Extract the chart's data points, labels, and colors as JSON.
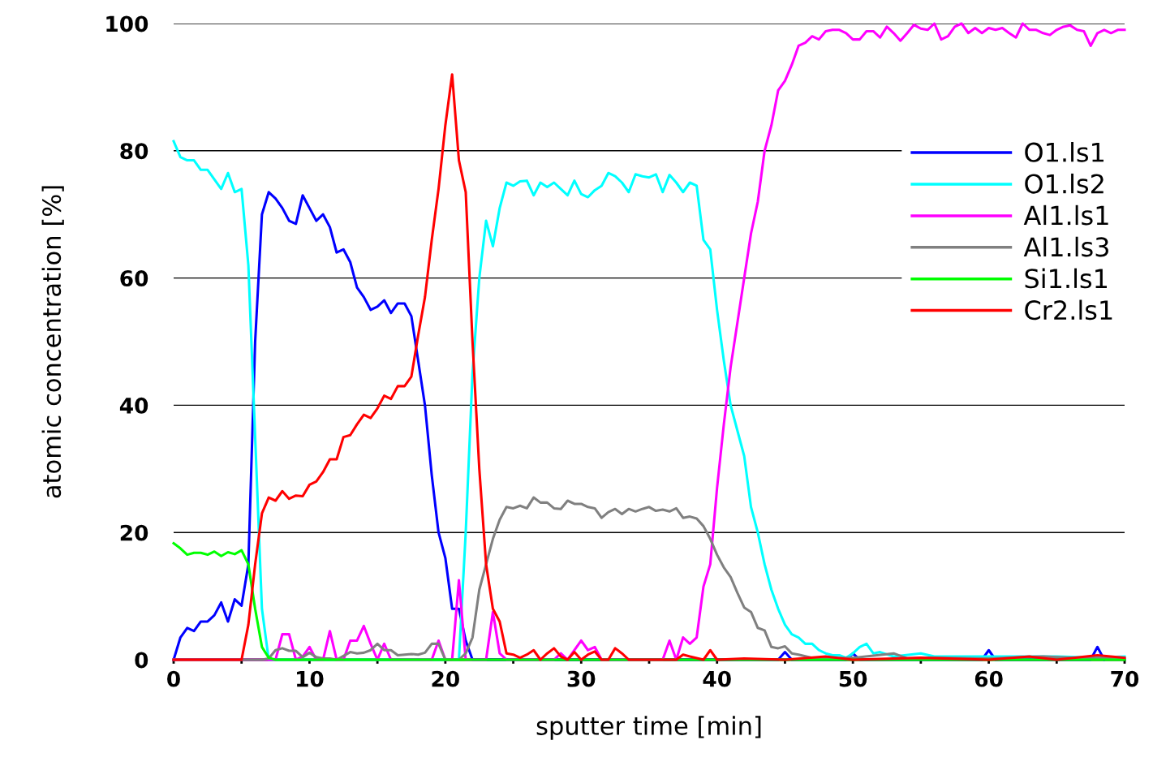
{
  "chart_data": {
    "type": "line",
    "xlabel": "sputter time [min]",
    "ylabel": "atomic concentration [%]",
    "xlim": [
      0,
      70
    ],
    "ylim": [
      0,
      100
    ],
    "xticks": [
      0,
      {
        "value": 5,
        "label": null
      },
      10,
      {
        "value": 15,
        "label": null
      },
      20,
      {
        "value": 25,
        "label": null
      },
      30,
      {
        "value": 35,
        "label": null
      },
      40,
      {
        "value": 45,
        "label": null
      },
      50,
      {
        "value": 55,
        "label": null
      },
      60,
      {
        "value": 65,
        "label": null
      },
      70
    ],
    "yticks": [
      0,
      20,
      40,
      60,
      80,
      100
    ],
    "grid": "y",
    "legend": "right",
    "marker": "none",
    "line_style": "solid",
    "series": [
      {
        "name": "O1.ls1",
        "color": "#0000ff",
        "x": [
          0,
          0.5,
          1,
          1.5,
          2,
          2.5,
          3,
          3.5,
          4,
          4.5,
          5,
          5.5,
          6,
          6.5,
          7,
          7.5,
          8,
          8.5,
          9,
          9.5,
          10,
          10.5,
          11,
          11.5,
          12,
          12.5,
          13,
          13.5,
          14,
          14.5,
          15,
          15.5,
          16,
          16.5,
          17,
          17.5,
          18,
          18.5,
          19,
          19.5,
          20,
          20.5,
          21,
          21.5,
          22,
          44.5,
          45,
          45.5,
          49.5,
          50,
          50.5,
          59.5,
          60,
          60.5,
          67.5,
          68,
          68.5
        ],
        "values": [
          0,
          3.5,
          5,
          4.5,
          6,
          6,
          7,
          9,
          6,
          9.5,
          8.5,
          15,
          50,
          70,
          73.5,
          72.5,
          71,
          69,
          68.5,
          73,
          71,
          69,
          70,
          68,
          64,
          64.5,
          62.5,
          58.5,
          57,
          55,
          55.5,
          56.5,
          54.5,
          56,
          56,
          54,
          47,
          40,
          29,
          20,
          16,
          8,
          8,
          3,
          0,
          0,
          1.2,
          0,
          0,
          1,
          0,
          0,
          1.5,
          0,
          0,
          2,
          0
        ]
      },
      {
        "name": "O1.ls2",
        "color": "#00ffff",
        "x": [
          0,
          0.5,
          1,
          1.5,
          2,
          2.5,
          3,
          3.5,
          4,
          4.5,
          5,
          5.5,
          6,
          6.5,
          7,
          21,
          21.5,
          22,
          22.5,
          23,
          23.5,
          24,
          24.5,
          25,
          25.5,
          26,
          26.5,
          27,
          27.5,
          28,
          28.5,
          29,
          29.5,
          30,
          30.5,
          31,
          31.5,
          32,
          32.5,
          33,
          33.5,
          34,
          34.5,
          35,
          35.5,
          36,
          36.5,
          37,
          37.5,
          38,
          38.5,
          39,
          39.5,
          40,
          40.5,
          41,
          41.5,
          42,
          42.5,
          43,
          43.5,
          44,
          44.5,
          45,
          45.5,
          46,
          46.5,
          47,
          47.5,
          48,
          48.5,
          49,
          49.5,
          50,
          50.5,
          51,
          51.5,
          52,
          53,
          55,
          56,
          58,
          60,
          62,
          65,
          68,
          70
        ],
        "values": [
          81.5,
          79,
          78.5,
          78.5,
          77,
          77,
          75.5,
          74,
          76.5,
          73.5,
          74,
          62,
          35,
          8,
          0,
          0,
          20,
          45,
          60,
          69,
          65,
          71,
          75,
          74.5,
          75.2,
          75.3,
          73,
          75,
          74.3,
          75,
          74,
          73,
          75.3,
          73.2,
          72.7,
          73.8,
          74.5,
          76.5,
          76,
          75,
          73.5,
          76.3,
          76,
          75.8,
          76.3,
          73.5,
          76.2,
          75,
          73.5,
          75,
          74.5,
          66,
          64.5,
          55,
          47,
          40,
          36,
          32,
          24,
          20,
          15,
          11,
          8,
          5.5,
          4,
          3.5,
          2.5,
          2.5,
          1.5,
          1,
          0.7,
          0.7,
          0.3,
          1,
          2,
          2.5,
          1,
          1.2,
          0.5,
          1,
          0.5,
          0.5,
          0.5,
          0.5,
          0.5,
          0.3,
          0.5
        ]
      },
      {
        "name": "Al1.ls1",
        "color": "#ff00ff",
        "x": [
          0,
          7.5,
          8,
          8.5,
          9,
          9.5,
          10,
          10.5,
          11,
          11.5,
          12,
          12.5,
          13,
          13.5,
          14,
          14.5,
          15,
          15.5,
          16,
          19,
          19.5,
          20,
          20.5,
          21,
          21.5,
          23,
          23.5,
          24,
          24.5,
          28,
          28.5,
          29,
          30,
          30.5,
          31,
          31.5,
          36,
          36.5,
          37,
          37.5,
          38,
          38.5,
          39,
          39.5,
          40,
          40.5,
          41,
          41.5,
          42,
          42.5,
          43,
          43.5,
          44,
          44.5,
          45,
          45.5,
          46,
          46.5,
          47,
          47.5,
          48,
          48.5,
          49,
          49.5,
          50,
          50.5,
          51,
          51.5,
          52,
          52.5,
          53,
          53.5,
          54,
          54.5,
          55,
          55.5,
          56,
          56.5,
          57,
          57.5,
          58,
          58.5,
          59,
          59.5,
          60,
          60.5,
          61,
          61.5,
          62,
          62.5,
          63,
          63.5,
          64,
          64.5,
          65,
          65.5,
          66,
          66.5,
          67,
          67.5,
          68,
          68.5,
          69,
          69.5,
          70
        ],
        "values": [
          0,
          0,
          4,
          4,
          0,
          0.5,
          2,
          0,
          0,
          4.5,
          0,
          0,
          3,
          3,
          5.3,
          2.5,
          0,
          2.5,
          0,
          0,
          3,
          0,
          0,
          12.5,
          0,
          0,
          7.5,
          1,
          0,
          0,
          1,
          0,
          3,
          1.5,
          2,
          0,
          0,
          3,
          0,
          3.5,
          2.5,
          3.5,
          11.5,
          15,
          27,
          37,
          46,
          53,
          60,
          67,
          72,
          80,
          84,
          89.5,
          91,
          93.5,
          96.5,
          97,
          98,
          97.5,
          98.8,
          99,
          99,
          98.5,
          97.5,
          97.5,
          98.8,
          98.8,
          97.8,
          99.5,
          98.5,
          97.3,
          98.5,
          99.8,
          99.2,
          99,
          100,
          97.5,
          98,
          99.5,
          100,
          98.5,
          99.3,
          98.5,
          99.3,
          99,
          99.3,
          98.5,
          97.8,
          100,
          99,
          99,
          98.5,
          98.2,
          99,
          99.5,
          99.7,
          99,
          98.8,
          96.5,
          98.5,
          99,
          98.5,
          99,
          99
        ]
      },
      {
        "name": "Al1.ls3",
        "color": "#808080",
        "x": [
          0,
          6.5,
          7,
          7.5,
          8,
          8.5,
          9,
          9.5,
          10,
          10.5,
          11,
          11.5,
          12,
          12.5,
          13,
          13.5,
          14,
          14.5,
          15,
          15.5,
          16,
          16.5,
          17,
          17.5,
          18,
          18.5,
          19,
          19.5,
          20,
          21,
          21.5,
          22,
          22.5,
          23,
          23.5,
          24,
          24.5,
          25,
          25.5,
          26,
          26.5,
          27,
          27.5,
          28,
          28.5,
          29,
          29.5,
          30,
          30.5,
          31,
          31.5,
          32,
          32.5,
          33,
          33.5,
          34,
          34.5,
          35,
          35.5,
          36,
          36.5,
          37,
          37.5,
          38,
          38.5,
          39,
          39.5,
          40,
          40.5,
          41,
          41.5,
          42,
          42.5,
          43,
          43.5,
          44,
          44.5,
          45,
          45.5,
          46,
          47,
          48,
          50,
          53,
          54,
          56,
          60,
          64,
          66,
          70
        ],
        "values": [
          0,
          0,
          0.2,
          1.5,
          1.8,
          1.4,
          1.4,
          0.4,
          1.1,
          0.4,
          0.2,
          0.2,
          0,
          0.6,
          1.2,
          1,
          1.1,
          1.5,
          2.5,
          1.5,
          1.5,
          0.7,
          0.8,
          0.9,
          0.8,
          1.1,
          2.5,
          2.5,
          0,
          0,
          1,
          3.5,
          11,
          15,
          19,
          22,
          24,
          23.8,
          24.2,
          23.8,
          25.5,
          24.7,
          24.7,
          23.8,
          23.7,
          25,
          24.5,
          24.5,
          24,
          23.8,
          22.3,
          23.2,
          23.7,
          22.9,
          23.7,
          23.3,
          23.7,
          24,
          23.4,
          23.6,
          23.3,
          23.8,
          22.3,
          22.5,
          22.2,
          21,
          19,
          16.5,
          14.5,
          13,
          10.5,
          8.2,
          7.5,
          5,
          4.6,
          2,
          1.8,
          2.1,
          1,
          0.8,
          0.3,
          0.2,
          0.3,
          1,
          0.2,
          0.3,
          0.2,
          0.5,
          0.3,
          0.2
        ]
      },
      {
        "name": "Si1.ls1",
        "color": "#00ff00",
        "x": [
          0,
          0.5,
          1,
          1.5,
          2,
          2.5,
          3,
          3.5,
          4,
          4.5,
          5,
          5.5,
          6,
          6.5,
          7,
          7.5,
          70
        ],
        "values": [
          18.3,
          17.5,
          16.5,
          16.8,
          16.8,
          16.5,
          17,
          16.3,
          16.9,
          16.6,
          17.2,
          15,
          8,
          2,
          0.3,
          0,
          0
        ]
      },
      {
        "name": "Cr2.ls1",
        "color": "#ff0000",
        "x": [
          0,
          5,
          5.5,
          6,
          6.5,
          7,
          7.5,
          8,
          8.5,
          9,
          9.5,
          10,
          10.5,
          11,
          11.5,
          12,
          12.5,
          13,
          13.5,
          14,
          14.5,
          15,
          15.5,
          16,
          16.5,
          17,
          17.5,
          18,
          18.5,
          19,
          19.5,
          20,
          20.5,
          21,
          21.5,
          22,
          22.5,
          23,
          23.5,
          24,
          24.5,
          25,
          25.5,
          26,
          26.5,
          27,
          27.5,
          28,
          28.5,
          29,
          29.5,
          30,
          30.5,
          31,
          31.5,
          32,
          32.5,
          33,
          33.5,
          37,
          37.5,
          38,
          39,
          39.5,
          40,
          42,
          45,
          48,
          50,
          55,
          60,
          63,
          65,
          68,
          70
        ],
        "values": [
          0,
          0,
          5.5,
          15,
          23,
          25.5,
          25,
          26.5,
          25.3,
          25.8,
          25.7,
          27.5,
          28,
          29.5,
          31.5,
          31.5,
          35,
          35.3,
          37,
          38.5,
          38,
          39.5,
          41.5,
          41,
          43,
          43,
          44.5,
          51,
          57,
          66,
          74,
          84,
          92,
          78.5,
          73.5,
          50,
          30,
          15,
          8,
          6,
          1,
          0.8,
          0.3,
          0.8,
          1.5,
          0,
          1,
          1.8,
          0.5,
          0,
          1.2,
          0,
          0.8,
          1.3,
          0,
          0,
          1.8,
          1,
          0,
          0,
          0.8,
          0.5,
          0,
          1.5,
          0,
          0.2,
          0,
          0.5,
          0,
          0.3,
          0,
          0.5,
          0,
          0.7,
          0.3
        ]
      }
    ]
  }
}
